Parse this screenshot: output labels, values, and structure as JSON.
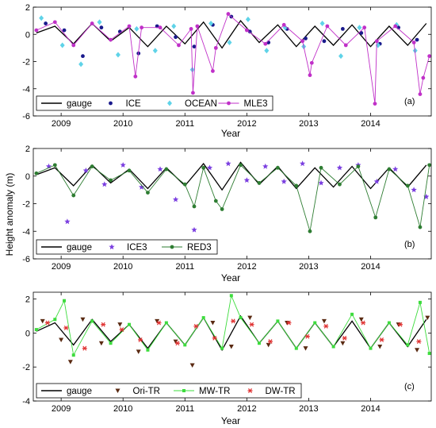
{
  "figure": {
    "ylabel": "Height anomaly (m)",
    "xlabel": "Year"
  },
  "chart_data": [
    {
      "type": "scatter",
      "panel_label": "(a)",
      "xlim": [
        2008.55,
        2014.98
      ],
      "ylim": [
        -6,
        2
      ],
      "yticks": [
        -6,
        -4,
        -2,
        0,
        2
      ],
      "xticks": [
        2009,
        2010,
        2011,
        2012,
        2013,
        2014
      ],
      "xticklabels": [
        "2009",
        "2010",
        "2011",
        "2012",
        "2013",
        "2014"
      ],
      "legend_position": "bottom-left",
      "series": [
        {
          "name": "gauge",
          "marker": "line",
          "color": "#000000",
          "x": [
            2008.6,
            2008.9,
            2009.2,
            2009.5,
            2009.8,
            2010.1,
            2010.4,
            2010.7,
            2011.0,
            2011.3,
            2011.6,
            2011.9,
            2012.2,
            2012.5,
            2012.8,
            2013.1,
            2013.4,
            2013.7,
            2014.0,
            2014.3,
            2014.6,
            2014.9
          ],
          "values": [
            0.1,
            0.6,
            -0.7,
            0.8,
            -0.5,
            0.5,
            -0.9,
            0.6,
            -0.7,
            0.9,
            -1.0,
            1.0,
            -0.6,
            0.7,
            -0.9,
            0.6,
            -0.8,
            0.7,
            -0.9,
            0.6,
            -0.8,
            0.8
          ]
        },
        {
          "name": "ICE",
          "marker": "dot",
          "color": "#1a1a8c",
          "x": [
            2008.75,
            2009.05,
            2009.35,
            2009.65,
            2009.95,
            2010.25,
            2010.55,
            2010.85,
            2011.15,
            2011.45,
            2011.75,
            2012.05,
            2012.35,
            2012.65,
            2012.95,
            2013.25,
            2013.55,
            2013.85,
            2014.15,
            2014.45,
            2014.75
          ],
          "values": [
            0.8,
            0.3,
            -1.6,
            0.5,
            0.2,
            -1.4,
            0.6,
            -0.2,
            -0.9,
            0.7,
            1.3,
            0.2,
            -0.6,
            0.4,
            -0.3,
            -0.5,
            0.4,
            0.1,
            -0.7,
            0.5,
            -0.4
          ]
        },
        {
          "name": "OCEAN",
          "marker": "diamond",
          "color": "#5fd3e8",
          "x": [
            2008.68,
            2009.02,
            2009.32,
            2009.62,
            2009.92,
            2010.22,
            2010.52,
            2010.82,
            2011.12,
            2011.42,
            2011.72,
            2012.02,
            2012.32,
            2012.62,
            2012.92,
            2013.22,
            2013.52,
            2013.82,
            2014.12,
            2014.42,
            2014.72
          ],
          "values": [
            1.2,
            -0.8,
            -2.2,
            0.9,
            -1.5,
            0.4,
            -1.2,
            0.6,
            -2.6,
            0.8,
            -0.6,
            1.1,
            -1.2,
            0.5,
            -0.9,
            0.8,
            -1.6,
            0.5,
            -0.8,
            0.7,
            -1.2
          ]
        },
        {
          "name": "MLE3",
          "marker": "line-dot",
          "color": "#c030c8",
          "x": [
            2008.6,
            2008.9,
            2009.2,
            2009.5,
            2009.8,
            2010.1,
            2010.2,
            2010.3,
            2010.6,
            2010.9,
            2011.1,
            2011.13,
            2011.2,
            2011.45,
            2011.5,
            2011.7,
            2012.0,
            2012.3,
            2012.6,
            2012.9,
            2013.02,
            2013.05,
            2013.3,
            2013.6,
            2013.9,
            2014.07,
            2014.1,
            2014.4,
            2014.7,
            2014.8,
            2014.85,
            2014.95
          ],
          "values": [
            0.3,
            0.9,
            -0.8,
            0.8,
            -0.4,
            0.6,
            -3.1,
            0.5,
            0.5,
            -0.8,
            0.4,
            -4.3,
            0.6,
            -2.7,
            -1.0,
            1.5,
            0.3,
            -0.7,
            0.7,
            -0.5,
            -3.0,
            -2.1,
            0.6,
            -0.8,
            0.5,
            -5.1,
            -0.5,
            0.6,
            -0.6,
            -4.4,
            -3.2,
            -1.6
          ]
        }
      ]
    },
    {
      "type": "scatter",
      "panel_label": "(b)",
      "xlim": [
        2008.55,
        2014.98
      ],
      "ylim": [
        -6,
        2
      ],
      "yticks": [
        -6,
        -4,
        -2,
        0,
        2
      ],
      "xticks": [
        2009,
        2010,
        2011,
        2012,
        2013,
        2014
      ],
      "xticklabels": [
        "2009",
        "2010",
        "2011",
        "2012",
        "2013",
        "2014"
      ],
      "legend_position": "bottom-left",
      "series": [
        {
          "name": "gauge",
          "marker": "line",
          "color": "#000000",
          "x": [
            2008.6,
            2008.9,
            2009.2,
            2009.5,
            2009.8,
            2010.1,
            2010.4,
            2010.7,
            2011.0,
            2011.3,
            2011.6,
            2011.9,
            2012.2,
            2012.5,
            2012.8,
            2013.1,
            2013.4,
            2013.7,
            2014.0,
            2014.3,
            2014.6,
            2014.9
          ],
          "values": [
            0.1,
            0.6,
            -0.7,
            0.8,
            -0.5,
            0.5,
            -0.9,
            0.6,
            -0.7,
            0.9,
            -1.0,
            1.0,
            -0.6,
            0.7,
            -0.9,
            0.6,
            -0.8,
            0.7,
            -0.9,
            0.6,
            -0.8,
            0.8
          ]
        },
        {
          "name": "ICE3",
          "marker": "star",
          "color": "#7b3fe0",
          "x": [
            2008.8,
            2009.1,
            2009.4,
            2009.7,
            2010.0,
            2010.3,
            2010.6,
            2010.85,
            2011.15,
            2011.4,
            2011.7,
            2012.0,
            2012.3,
            2012.6,
            2012.9,
            2013.2,
            2013.5,
            2013.8,
            2014.1,
            2014.4,
            2014.7,
            2014.9
          ],
          "values": [
            0.7,
            -3.3,
            0.4,
            -0.6,
            0.8,
            -0.8,
            0.5,
            -1.7,
            -3.9,
            0.6,
            0.9,
            -0.3,
            0.7,
            -0.4,
            0.9,
            -0.5,
            0.6,
            0.8,
            -0.4,
            0.5,
            -1.0,
            -1.5
          ]
        },
        {
          "name": "RED3",
          "marker": "line-dot",
          "color": "#2e7d32",
          "x": [
            2008.6,
            2008.9,
            2009.2,
            2009.5,
            2009.8,
            2010.1,
            2010.4,
            2010.7,
            2011.0,
            2011.15,
            2011.3,
            2011.5,
            2011.6,
            2011.9,
            2012.2,
            2012.5,
            2012.8,
            2013.02,
            2013.2,
            2013.5,
            2013.8,
            2014.08,
            2014.3,
            2014.6,
            2014.8,
            2014.95
          ],
          "values": [
            0.2,
            0.8,
            -1.4,
            0.7,
            -0.3,
            0.4,
            -1.2,
            0.5,
            -0.6,
            -2.2,
            0.6,
            -1.8,
            -2.4,
            0.8,
            -0.5,
            0.6,
            -0.7,
            -4.0,
            0.6,
            -0.6,
            0.7,
            -3.0,
            0.5,
            -0.7,
            -3.7,
            0.8
          ]
        }
      ]
    },
    {
      "type": "scatter",
      "panel_label": "(c)",
      "xlim": [
        2008.55,
        2014.98
      ],
      "ylim": [
        -4,
        2.4
      ],
      "yticks": [
        -4,
        -2,
        0,
        2
      ],
      "xticks": [
        2009,
        2010,
        2011,
        2012,
        2013,
        2014
      ],
      "xticklabels": [
        "2009",
        "2010",
        "2011",
        "2012",
        "2013",
        "2014"
      ],
      "legend_position": "bottom-left",
      "series": [
        {
          "name": "gauge",
          "marker": "line",
          "color": "#000000",
          "x": [
            2008.6,
            2008.9,
            2009.2,
            2009.5,
            2009.8,
            2010.1,
            2010.4,
            2010.7,
            2011.0,
            2011.3,
            2011.6,
            2011.9,
            2012.2,
            2012.5,
            2012.8,
            2013.1,
            2013.4,
            2013.7,
            2014.0,
            2014.3,
            2014.6,
            2014.9
          ],
          "values": [
            0.1,
            0.6,
            -0.7,
            0.8,
            -0.5,
            0.5,
            -0.9,
            0.6,
            -0.7,
            0.9,
            -1.0,
            1.0,
            -0.6,
            0.7,
            -0.9,
            0.6,
            -0.8,
            0.7,
            -0.9,
            0.6,
            -0.8,
            0.8
          ]
        },
        {
          "name": "Ori-TR",
          "marker": "triangle-down",
          "color": "#5a2a12",
          "x": [
            2008.7,
            2009.0,
            2009.15,
            2009.35,
            2009.65,
            2009.95,
            2010.25,
            2010.55,
            2010.85,
            2011.12,
            2011.45,
            2011.75,
            2012.05,
            2012.35,
            2012.65,
            2012.95,
            2013.25,
            2013.55,
            2013.85,
            2014.15,
            2014.45,
            2014.75,
            2014.92
          ],
          "values": [
            0.7,
            -0.4,
            -1.7,
            0.8,
            -0.6,
            0.5,
            -1.1,
            0.7,
            -0.5,
            -1.9,
            0.6,
            -0.8,
            0.9,
            -0.7,
            0.6,
            -0.9,
            0.7,
            -0.6,
            0.8,
            -0.8,
            0.5,
            -1.0,
            0.9
          ]
        },
        {
          "name": "MW-TR",
          "marker": "line-square",
          "color": "#3ddc3d",
          "x": [
            2008.6,
            2008.9,
            2009.05,
            2009.2,
            2009.5,
            2009.8,
            2010.1,
            2010.4,
            2010.7,
            2011.0,
            2011.3,
            2011.6,
            2011.75,
            2011.9,
            2012.2,
            2012.5,
            2012.8,
            2013.1,
            2013.4,
            2013.7,
            2014.0,
            2014.3,
            2014.6,
            2014.8,
            2014.95
          ],
          "values": [
            0.2,
            0.8,
            1.9,
            -1.3,
            0.7,
            -0.6,
            0.5,
            -1.0,
            0.6,
            -0.7,
            0.9,
            -0.9,
            2.2,
            0.9,
            -0.6,
            0.7,
            -0.9,
            0.6,
            -0.8,
            1.1,
            -0.9,
            0.6,
            -0.7,
            1.8,
            -1.2
          ]
        },
        {
          "name": "DW-TR",
          "marker": "asterisk",
          "color": "#e03030",
          "x": [
            2008.78,
            2009.08,
            2009.38,
            2009.68,
            2009.98,
            2010.28,
            2010.58,
            2010.88,
            2011.18,
            2011.48,
            2011.78,
            2012.08,
            2012.38,
            2012.68,
            2012.98,
            2013.28,
            2013.58,
            2013.88,
            2014.18,
            2014.48,
            2014.78
          ],
          "values": [
            0.6,
            0.3,
            -0.9,
            0.5,
            0.2,
            -0.4,
            0.6,
            -0.6,
            0.4,
            -0.3,
            0.7,
            0.5,
            -0.5,
            0.6,
            -0.2,
            0.4,
            -0.3,
            0.6,
            -0.4,
            0.5,
            -0.5
          ]
        }
      ]
    }
  ]
}
